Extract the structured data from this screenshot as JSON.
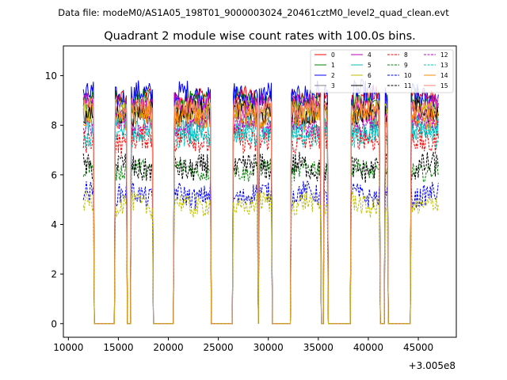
{
  "chart_data": {
    "type": "line",
    "suptitle": "Data file: modeM0/AS1A05_198T01_9000003024_20461cztM0_level2_quad_clean.evt",
    "title": "Quadrant 2 module wise count rates with 100.0s bins.",
    "xlabel": "",
    "ylabel": "",
    "x_offset_label": "+3.005e8",
    "xlim": [
      9500,
      48800
    ],
    "ylim": [
      -0.55,
      11.2
    ],
    "xticks": [
      10000,
      15000,
      20000,
      25000,
      30000,
      35000,
      40000,
      45000
    ],
    "xtick_labels": [
      "10000",
      "15000",
      "20000",
      "25000",
      "30000",
      "35000",
      "40000",
      "45000"
    ],
    "yticks": [
      0,
      2,
      4,
      6,
      8,
      10
    ],
    "ytick_labels": [
      "0",
      "2",
      "4",
      "6",
      "8",
      "10"
    ],
    "bin_seconds": 100,
    "x_start": 11500,
    "x_end": 47000,
    "on_intervals": [
      [
        11500,
        12500
      ],
      [
        14700,
        15800
      ],
      [
        16300,
        18400
      ],
      [
        20600,
        24200
      ],
      [
        26500,
        28900
      ],
      [
        29100,
        30300
      ],
      [
        32300,
        35200
      ],
      [
        35600,
        35900
      ],
      [
        38300,
        41100
      ],
      [
        41700,
        41900
      ],
      [
        44300,
        47000
      ]
    ],
    "series": [
      {
        "name": "0",
        "color": "#ff0000",
        "dash": "solid",
        "mean": 9.1
      },
      {
        "name": "1",
        "color": "#008000",
        "dash": "solid",
        "mean": 9.0
      },
      {
        "name": "2",
        "color": "#0000ff",
        "dash": "solid",
        "mean": 9.2
      },
      {
        "name": "3",
        "color": "#7f7f7f",
        "dash": "solid",
        "mean": 8.3
      },
      {
        "name": "4",
        "color": "#bf00bf",
        "dash": "solid",
        "mean": 8.8
      },
      {
        "name": "5",
        "color": "#00bfbf",
        "dash": "solid",
        "mean": 7.9
      },
      {
        "name": "6",
        "color": "#bfbf00",
        "dash": "solid",
        "mean": 8.6
      },
      {
        "name": "7",
        "color": "#000000",
        "dash": "solid",
        "mean": 8.5
      },
      {
        "name": "8",
        "color": "#ff0000",
        "dash": "dashed",
        "mean": 7.4
      },
      {
        "name": "9",
        "color": "#008000",
        "dash": "dashed",
        "mean": 6.2
      },
      {
        "name": "10",
        "color": "#0000ff",
        "dash": "dashed",
        "mean": 5.2
      },
      {
        "name": "11",
        "color": "#000000",
        "dash": "dashed",
        "mean": 6.3
      },
      {
        "name": "12",
        "color": "#bf00bf",
        "dash": "dashed",
        "mean": 8.0
      },
      {
        "name": "13",
        "color": "#00bfbf",
        "dash": "dashed",
        "mean": 7.6
      },
      {
        "name": "14",
        "color": "#ff8c00",
        "dash": "solid",
        "mean": 8.4
      },
      {
        "name": "15",
        "color": "#fa8072",
        "dash": "solid",
        "mean": 8.7
      },
      {
        "name": "",
        "color": "#bfbf00",
        "dash": "dashed",
        "mean": 4.8
      }
    ],
    "legend": {
      "location": "top-right",
      "columns": [
        [
          "0",
          "1",
          "2",
          "3"
        ],
        [
          "4",
          "5",
          "6",
          "7"
        ],
        [
          "8",
          "9",
          "10",
          "11"
        ],
        [
          "12",
          "13",
          "14",
          "15"
        ]
      ]
    }
  }
}
